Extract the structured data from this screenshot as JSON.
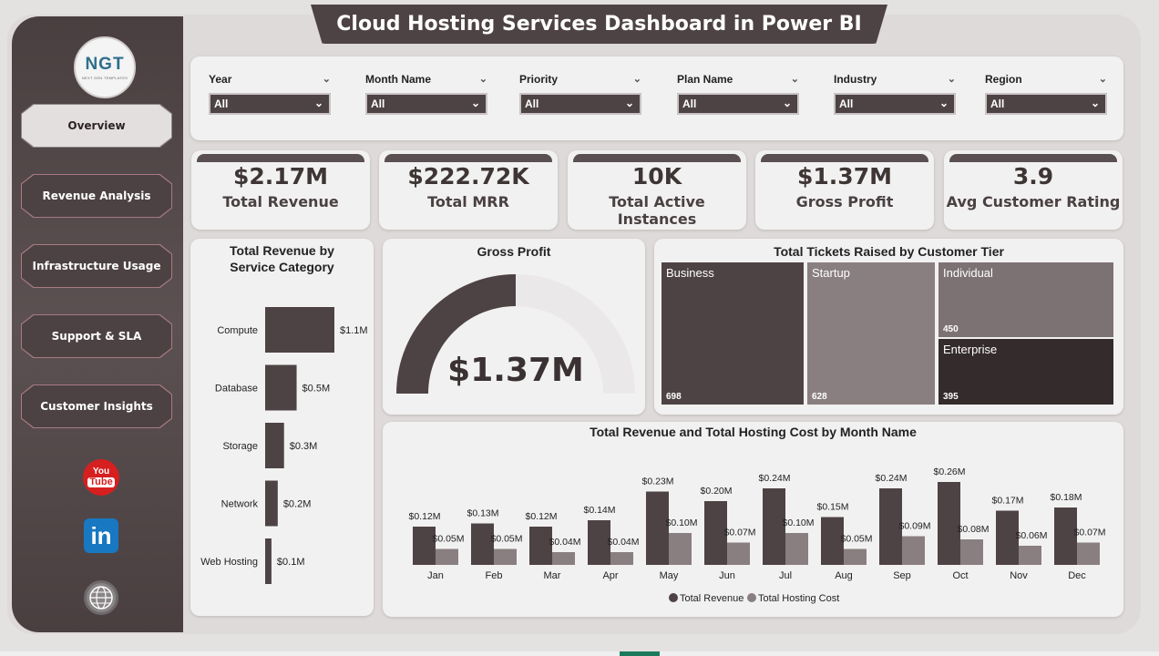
{
  "title": "Cloud Hosting Services Dashboard in Power BI",
  "logo": {
    "mark": "NGT",
    "sub": "NEXT GEN TEMPLATES"
  },
  "nav": [
    {
      "label": "Overview",
      "active": true
    },
    {
      "label": "Revenue Analysis",
      "active": false
    },
    {
      "label": "Infrastructure Usage",
      "active": false
    },
    {
      "label": "Support & SLA",
      "active": false
    },
    {
      "label": "Customer Insights",
      "active": false
    }
  ],
  "social": {
    "youtube_top": "You",
    "youtube_bottom": "Tube",
    "linkedin": "in",
    "web": "www"
  },
  "filters": [
    {
      "label": "Year",
      "value": "All"
    },
    {
      "label": "Month Name",
      "value": "All"
    },
    {
      "label": "Priority",
      "value": "All"
    },
    {
      "label": "Plan Name",
      "value": "All"
    },
    {
      "label": "Industry",
      "value": "All"
    },
    {
      "label": "Region",
      "value": "All"
    }
  ],
  "kpis": [
    {
      "value": "$2.17M",
      "label": "Total Revenue"
    },
    {
      "value": "$222.72K",
      "label": "Total MRR"
    },
    {
      "value": "10K",
      "label": "Total Active Instances"
    },
    {
      "value": "$1.37M",
      "label": "Gross Profit"
    },
    {
      "value": "3.9",
      "label": "Avg Customer Rating"
    }
  ],
  "colors": {
    "dark": "#4e4344",
    "light": "#8a7f80",
    "mid": "#7d7273",
    "darker": "#342b2c"
  },
  "chart_data": [
    {
      "type": "bar",
      "orientation": "horizontal",
      "title": "Total Revenue by Service Category",
      "categories": [
        "Compute",
        "Database",
        "Storage",
        "Network",
        "Web Hosting"
      ],
      "values": [
        1.1,
        0.5,
        0.3,
        0.2,
        0.1
      ],
      "labels": [
        "$1.1M",
        "$0.5M",
        "$0.3M",
        "$0.2M",
        "$0.1M"
      ]
    },
    {
      "type": "gauge",
      "title": "Gross Profit",
      "value": 1.37,
      "display": "$1.37M",
      "fraction": 0.5
    },
    {
      "type": "treemap",
      "title": "Total Tickets Raised by Customer Tier",
      "items": [
        {
          "name": "Business",
          "value": 698
        },
        {
          "name": "Startup",
          "value": 628
        },
        {
          "name": "Individual",
          "value": 450
        },
        {
          "name": "Enterprise",
          "value": 395
        }
      ]
    },
    {
      "type": "bar",
      "title": "Total Revenue and Total Hosting Cost by Month Name",
      "categories": [
        "Jan",
        "Feb",
        "Mar",
        "Apr",
        "May",
        "Jun",
        "Jul",
        "Aug",
        "Sep",
        "Oct",
        "Nov",
        "Dec"
      ],
      "series": [
        {
          "name": "Total Revenue",
          "values": [
            0.12,
            0.13,
            0.12,
            0.14,
            0.23,
            0.2,
            0.24,
            0.15,
            0.24,
            0.26,
            0.17,
            0.18
          ],
          "labels": [
            "$0.12M",
            "$0.13M",
            "$0.12M",
            "$0.14M",
            "$0.23M",
            "$0.20M",
            "$0.24M",
            "$0.15M",
            "$0.24M",
            "$0.26M",
            "$0.17M",
            "$0.18M"
          ]
        },
        {
          "name": "Total Hosting Cost",
          "values": [
            0.05,
            0.05,
            0.04,
            0.04,
            0.1,
            0.07,
            0.1,
            0.05,
            0.09,
            0.08,
            0.06,
            0.07
          ],
          "labels": [
            "$0.05M",
            "$0.05M",
            "$0.04M",
            "$0.04M",
            "$0.10M",
            "$0.07M",
            "$0.10M",
            "$0.05M",
            "$0.09M",
            "$0.08M",
            "$0.06M",
            "$0.07M"
          ]
        }
      ],
      "legend": "bottom"
    }
  ]
}
